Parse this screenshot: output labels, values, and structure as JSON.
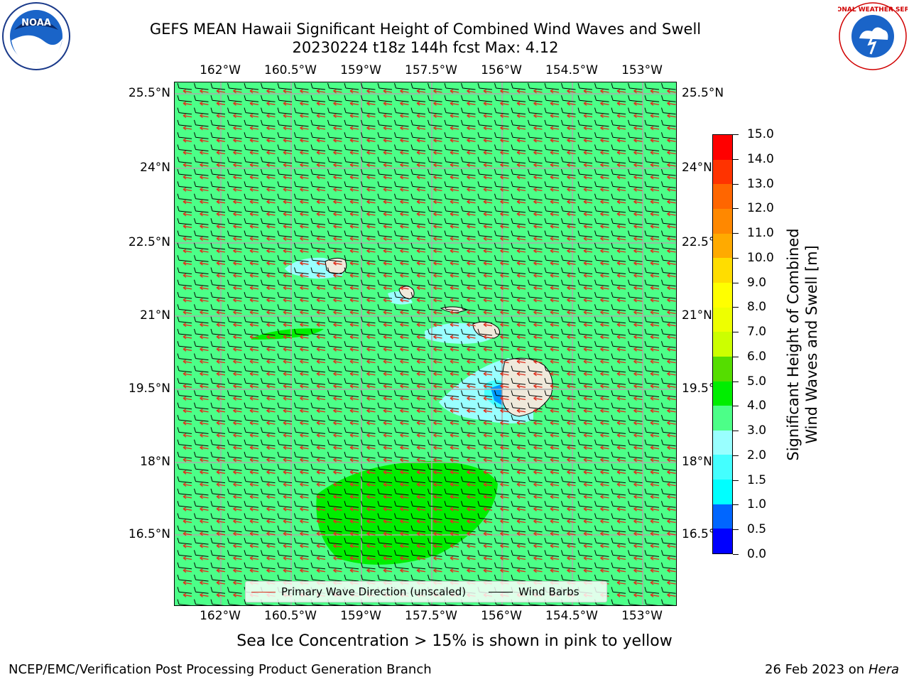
{
  "title_line1": "GEFS MEAN Hawaii Significant Height of Combined Wind Waves and Swell",
  "title_line2": "20230224 t18z 144h fcst   Max: 4.12",
  "logos": {
    "left": "noaa-logo",
    "right": "national-weather-service-logo",
    "left_text": "NOAA",
    "right_text": "NATIONAL WEATHER SERVICE"
  },
  "lon_labels": [
    "162°W",
    "160.5°W",
    "159°W",
    "157.5°W",
    "156°W",
    "154.5°W",
    "153°W"
  ],
  "lat_labels": [
    "25.5°N",
    "24°N",
    "22.5°N",
    "21°N",
    "19.5°N",
    "18°N",
    "16.5°N"
  ],
  "legend": {
    "wave": "Primary Wave Direction (unscaled)",
    "barb": "Wind Barbs"
  },
  "colorbar": {
    "title_line1": "Significant Height of Combined",
    "title_line2": "Wind Waves and Swell [m]",
    "tick_labels": [
      "0.0",
      "0.5",
      "1.0",
      "1.5",
      "2.0",
      "3.0",
      "4.0",
      "5.0",
      "6.0",
      "7.0",
      "8.0",
      "9.0",
      "10.0",
      "11.0",
      "12.0",
      "13.0",
      "14.0",
      "15.0"
    ],
    "colors": [
      "#0000ff",
      "#0066ff",
      "#00ffff",
      "#44ffff",
      "#99ffff",
      "#4cff88",
      "#00ee00",
      "#55dd00",
      "#ccff00",
      "#eeff00",
      "#ffff00",
      "#ffdd00",
      "#ffaa00",
      "#ff8800",
      "#ff6600",
      "#ff3300",
      "#ff0000"
    ]
  },
  "colors": {
    "sea": "#4cff88",
    "land": "#efe9db",
    "wave_arrow": "#e0301e",
    "barb": "#000000",
    "grid": "#aaaaaa"
  },
  "note": "Sea Ice Concentration > 15% is shown in pink to yellow",
  "footer_left": "NCEP/EMC/Verification Post Processing Product Generation Branch",
  "footer_right_date": "26 Feb 2023 on",
  "footer_right_host": "Hera"
}
